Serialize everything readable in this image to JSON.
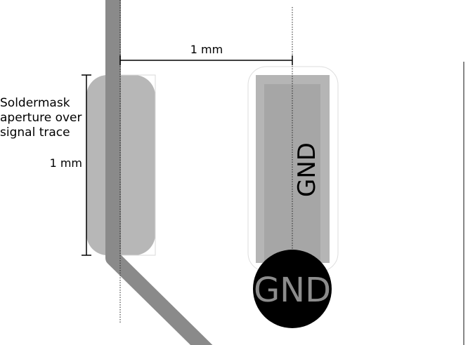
{
  "labels": {
    "horizontal_dimension": "1 mm",
    "vertical_dimension": "1 mm",
    "soldermask_note": [
      "Soldermask",
      "aperture over",
      "signal trace"
    ],
    "pad_net": "GND",
    "via_net": "GND"
  },
  "colors": {
    "trace": "#8a8a8a",
    "aperture": "#b7b7b7",
    "pad_outer": "#b5b5b5",
    "pad_inner": "#a6a6a6",
    "via": "#000000",
    "via_text": "#8c8c8c",
    "dimension_line": "#000000",
    "outline": "#d8d8d8"
  }
}
